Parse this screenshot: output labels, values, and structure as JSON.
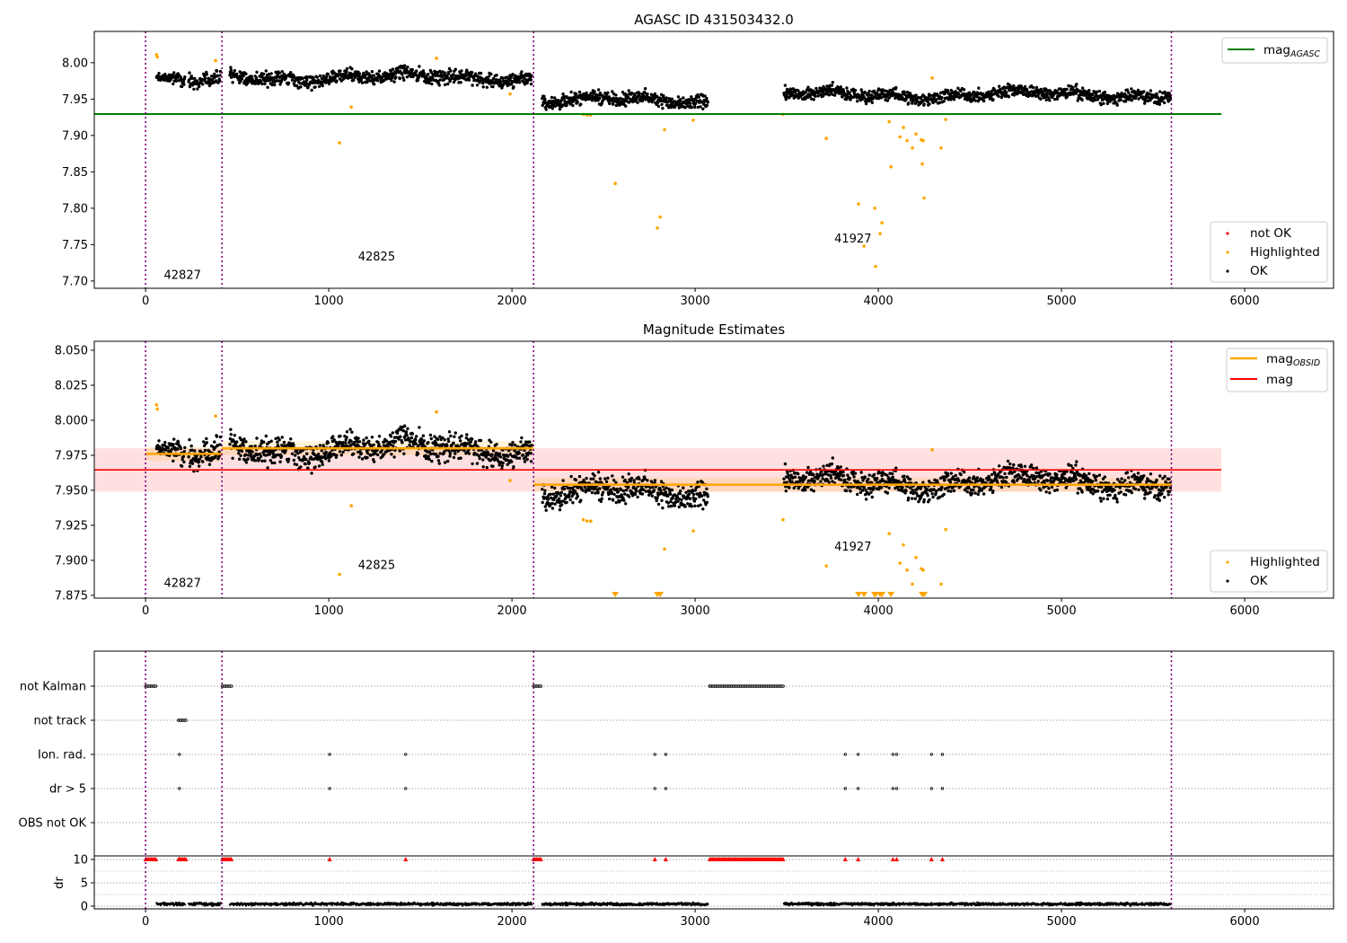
{
  "chart_data": [
    {
      "type": "scatter",
      "title": "AGASC ID 431503432.0",
      "xlim": [
        -280,
        6485
      ],
      "ylim": [
        7.69,
        8.043
      ],
      "xticks": [
        0,
        1000,
        2000,
        3000,
        4000,
        5000,
        6000
      ],
      "yticks": [
        "7.70",
        "7.75",
        "7.80",
        "7.85",
        "7.90",
        "7.95",
        "8.00"
      ],
      "mag_agasc": 7.9295,
      "mag_agasc_xrange": [
        -280,
        5873
      ],
      "legend_upper": {
        "label": "mag",
        "sub": "AGASC",
        "color": "#008000"
      },
      "legend_lower": [
        {
          "label": "not OK",
          "color": "#ff0000"
        },
        {
          "label": "Highlighted",
          "color": "#ffa500"
        },
        {
          "label": "OK",
          "color": "#000000"
        }
      ],
      "annotations": [
        {
          "text": "42827",
          "x": 100,
          "y": 7.703
        },
        {
          "text": "42825",
          "x": 1160,
          "y": 7.728
        },
        {
          "text": "41927",
          "x": 3760,
          "y": 7.753
        }
      ]
    },
    {
      "type": "scatter",
      "title": "Magnitude Estimates",
      "xlim": [
        -280,
        6485
      ],
      "ylim": [
        7.873,
        8.0564
      ],
      "xticks": [
        0,
        1000,
        2000,
        3000,
        4000,
        5000,
        6000
      ],
      "yticks": [
        "7.875",
        "7.900",
        "7.925",
        "7.950",
        "7.975",
        "8.000",
        "8.025",
        "8.050"
      ],
      "mag": 7.9646,
      "mag_band": [
        7.949,
        7.98
      ],
      "mag_xrange": [
        -280,
        5873
      ],
      "mag_obsid": [
        {
          "obsid": "42827",
          "t0": 0,
          "t1": 417,
          "mag": 7.976
        },
        {
          "obsid": "42825",
          "t0": 417,
          "t1": 2118,
          "mag": 7.98
        },
        {
          "obsid": "41927",
          "t0": 2118,
          "t1": 5600,
          "mag": 7.954
        }
      ],
      "legend_upper": [
        {
          "label": "mag",
          "sub": "OBSID",
          "color": "#ffa500"
        },
        {
          "label": "mag",
          "sub": "",
          "color": "#ff0000"
        }
      ],
      "legend_lower": [
        {
          "label": "Highlighted",
          "color": "#ffa500"
        },
        {
          "label": "OK",
          "color": "#000000"
        }
      ],
      "annotations": [
        {
          "text": "42827",
          "x": 100,
          "y": 7.881
        },
        {
          "text": "42825",
          "x": 1160,
          "y": 7.894
        },
        {
          "text": "41927",
          "x": 3760,
          "y": 7.907
        }
      ]
    },
    {
      "type": "scatter",
      "xlim": [
        -280,
        6485
      ],
      "flag_rows": [
        "not Kalman",
        "not track",
        "Ion. rad.",
        "dr > 5",
        "OBS not OK"
      ],
      "flag_ranges": {
        "not Kalman": [
          [
            0,
            60
          ],
          [
            420,
            470
          ],
          [
            2118,
            2160
          ],
          [
            3080,
            3480
          ]
        ],
        "not track": [
          [
            180,
            220
          ]
        ],
        "Ion. rad.": [],
        "dr > 5": [],
        "OBS not OK": []
      },
      "flag_points": {
        "Ion. rad.": [
          185,
          1005,
          1420,
          2780,
          2840,
          3820,
          3890,
          4080,
          4100,
          4290,
          4350
        ],
        "dr > 5": [
          185,
          1005,
          1420,
          2780,
          2840,
          3820,
          3890,
          4080,
          4100,
          4290,
          4350
        ]
      },
      "dr_ylabel": "dr",
      "dr_ylim": [
        -0.58,
        10.77
      ],
      "dr_yticks": [
        "0",
        "5",
        "10"
      ],
      "xticks": [
        0,
        1000,
        2000,
        3000,
        4000,
        5000,
        6000
      ]
    }
  ],
  "obs_boundaries": [
    0,
    417,
    2118,
    5600
  ],
  "ok_segments": [
    {
      "t0": 60,
      "t1": 215,
      "mean": 7.975,
      "sd": 0.006
    },
    {
      "t0": 235,
      "t1": 410,
      "mean": 7.972,
      "sd": 0.007
    },
    {
      "t0": 460,
      "t1": 2110,
      "mean": 7.98,
      "sd": 0.0065
    },
    {
      "t0": 2165,
      "t1": 3070,
      "mean": 7.948,
      "sd": 0.0065
    },
    {
      "t0": 3485,
      "t1": 5595,
      "mean": 7.956,
      "sd": 0.006
    }
  ],
  "highlighted": [
    [
      60,
      8.011
    ],
    [
      64,
      8.008
    ],
    [
      382,
      8.003
    ],
    [
      1123,
      7.939
    ],
    [
      1059,
      7.89
    ],
    [
      1588,
      8.006
    ],
    [
      1990,
      7.957
    ],
    [
      2390,
      7.929
    ],
    [
      2410,
      7.928
    ],
    [
      2430,
      7.928
    ],
    [
      2564,
      7.834
    ],
    [
      2833,
      7.908
    ],
    [
      2809,
      7.788
    ],
    [
      2794,
      7.773
    ],
    [
      2990,
      7.921
    ],
    [
      3480,
      7.929
    ],
    [
      3716,
      7.896
    ],
    [
      3892,
      7.806
    ],
    [
      3980,
      7.8
    ],
    [
      4020,
      7.78
    ],
    [
      4010,
      7.765
    ],
    [
      3922,
      7.748
    ],
    [
      3985,
      7.72
    ],
    [
      4059,
      7.919
    ],
    [
      4069,
      7.857
    ],
    [
      4118,
      7.898
    ],
    [
      4137,
      7.911
    ],
    [
      4157,
      7.893
    ],
    [
      4186,
      7.883
    ],
    [
      4206,
      7.902
    ],
    [
      4235,
      7.894
    ],
    [
      4245,
      7.893
    ],
    [
      4240,
      7.861
    ],
    [
      4250,
      7.814
    ],
    [
      4294,
      7.979
    ],
    [
      4343,
      7.883
    ],
    [
      4368,
      7.922
    ]
  ],
  "colors": {
    "ok": "#000000",
    "highlighted": "#ffa500",
    "not_ok": "#ff0000",
    "agasc": "#008000",
    "mag": "#ff0000",
    "obsid": "#ffa500",
    "boundary": "#800080"
  }
}
